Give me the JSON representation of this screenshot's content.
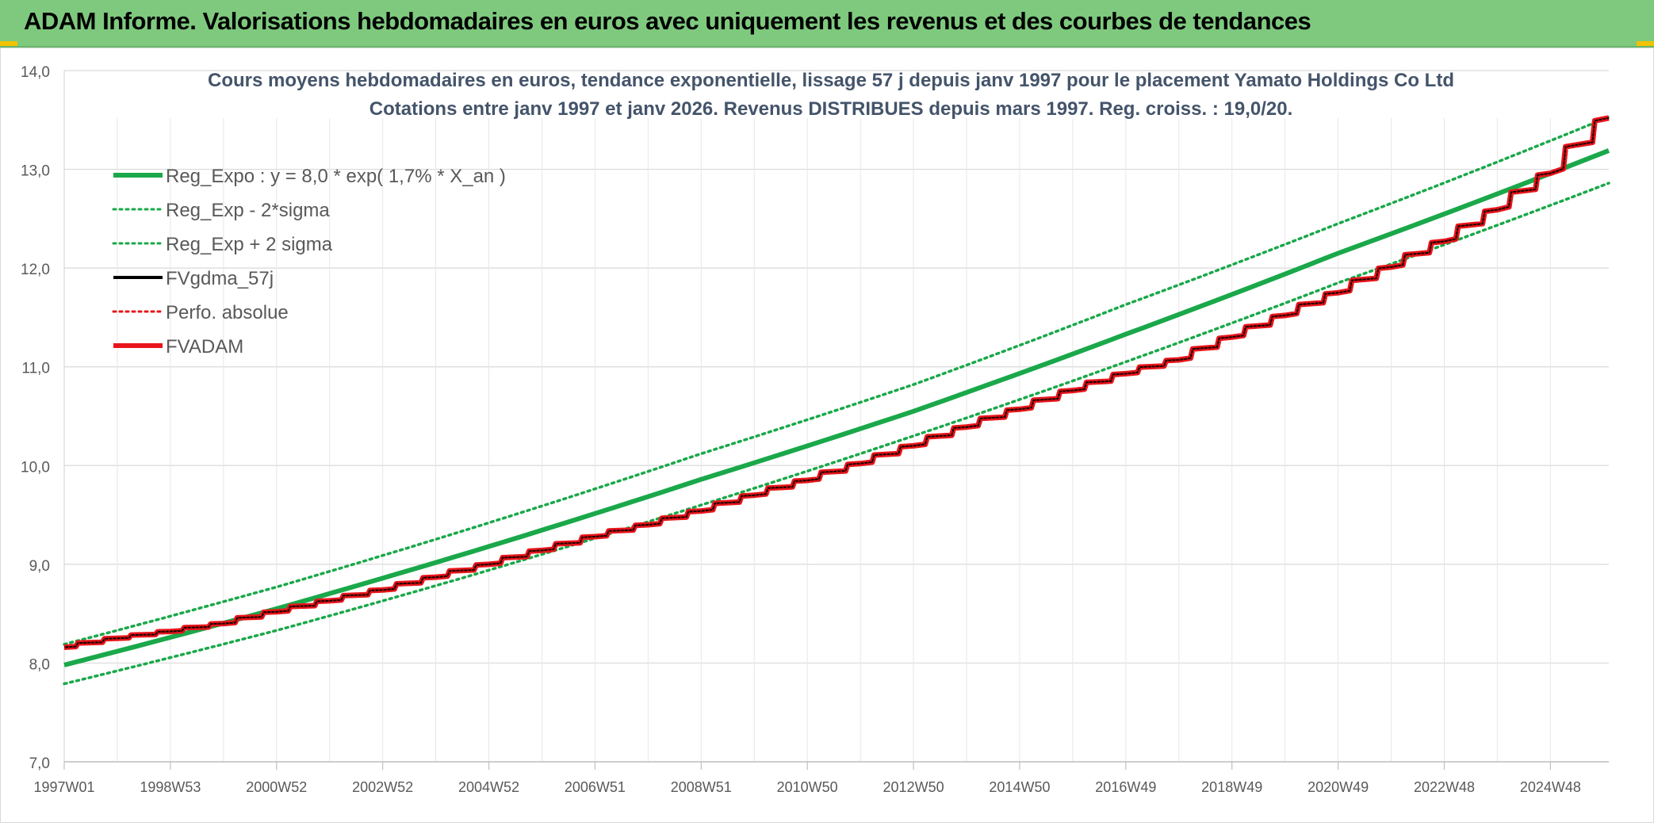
{
  "banner": {
    "title": "ADAM Informe. Valorisations hebdomadaires en euros avec uniquement les revenus et des courbes de tendances"
  },
  "colors": {
    "banner_bg": "#7ec97e",
    "trend_green": "#1aa84a",
    "series_black": "#000000",
    "series_red": "#e8151b",
    "grid": "#d9d9d9",
    "accent_yellow": "#f2c200"
  },
  "chart_data": {
    "type": "line",
    "title_line1": "Cours moyens hebdomadaires en euros, tendance exponentielle, lissage 57 j depuis janv 1997 pour le placement Yamato Holdings Co Ltd",
    "title_line2": "Cotations entre janv 1997 et janv 2026. Revenus DISTRIBUES depuis mars 1997. Reg. croiss. : 19,0/20.",
    "xlabel": "",
    "ylabel": "",
    "ylim": [
      7.0,
      14.0
    ],
    "y_ticks": [
      "7,0",
      "8,0",
      "9,0",
      "10,0",
      "11,0",
      "12,0",
      "13,0",
      "14,0"
    ],
    "x_range_years": [
      1997.0,
      2026.1
    ],
    "x_tick_labels": [
      "1997W01",
      "1998W53",
      "2000W52",
      "2002W52",
      "2004W52",
      "2006W51",
      "2008W51",
      "2010W50",
      "2012W50",
      "2014W50",
      "2016W49",
      "2018W49",
      "2020W49",
      "2022W48",
      "2024W48"
    ],
    "x_tick_years": [
      1997.0,
      1999.0,
      2001.0,
      2003.0,
      2005.0,
      2007.0,
      2009.0,
      2011.0,
      2013.0,
      2015.0,
      2017.0,
      2019.0,
      2021.0,
      2023.0,
      2025.0
    ],
    "grid": true,
    "legend_position": "top-left",
    "legend": [
      {
        "label": "Reg_Expo : y = 8,0 * exp( 1,7% *  X_an )",
        "color": "#1aa84a",
        "style": "solid-thick"
      },
      {
        "label": "Reg_Exp - 2*sigma",
        "color": "#1aa84a",
        "style": "dotted"
      },
      {
        "label": "Reg_Exp + 2 sigma",
        "color": "#1aa84a",
        "style": "dotted"
      },
      {
        "label": "FVgdma_57j",
        "color": "#000000",
        "style": "solid"
      },
      {
        "label": "Perfo. absolue",
        "color": "#e8151b",
        "style": "dotted"
      },
      {
        "label": "FVADAM",
        "color": "#e8151b",
        "style": "solid-thick"
      }
    ],
    "series": [
      {
        "name": "Reg_Expo : y = 8,0 * exp( 1,7% *  X_an )",
        "x": [
          1997,
          2001,
          2005,
          2009,
          2013,
          2017,
          2021,
          2026.1
        ],
        "y": [
          7.98,
          8.55,
          9.18,
          9.86,
          10.55,
          11.33,
          12.15,
          13.19
        ]
      },
      {
        "name": "Reg_Exp - 2*sigma",
        "x": [
          1997,
          2001,
          2005,
          2009,
          2013,
          2017,
          2021,
          2026.1
        ],
        "y": [
          7.79,
          8.33,
          8.94,
          9.6,
          10.3,
          11.05,
          11.85,
          12.86
        ]
      },
      {
        "name": "Reg_Exp + 2 sigma",
        "x": [
          1997,
          2001,
          2005,
          2009,
          2013,
          2017,
          2021,
          2026.1
        ],
        "y": [
          8.19,
          8.77,
          9.42,
          10.12,
          10.82,
          11.63,
          12.45,
          13.53
        ]
      },
      {
        "name": "FVADAM",
        "x": [
          1997,
          1998,
          1999,
          2000,
          2001,
          2002,
          2003,
          2004,
          2005,
          2006,
          2007,
          2008,
          2009,
          2010,
          2011,
          2012,
          2013,
          2014,
          2015,
          2016,
          2017,
          2018,
          2019,
          2020,
          2021,
          2022,
          2023,
          2024,
          2025,
          2026.1
        ],
        "y": [
          8.16,
          8.25,
          8.32,
          8.4,
          8.52,
          8.63,
          8.74,
          8.87,
          9.0,
          9.14,
          9.28,
          9.4,
          9.54,
          9.7,
          9.85,
          10.02,
          10.2,
          10.39,
          10.57,
          10.76,
          10.93,
          11.07,
          11.3,
          11.52,
          11.75,
          12.01,
          12.27,
          12.59,
          12.96,
          13.52
        ]
      }
    ]
  }
}
